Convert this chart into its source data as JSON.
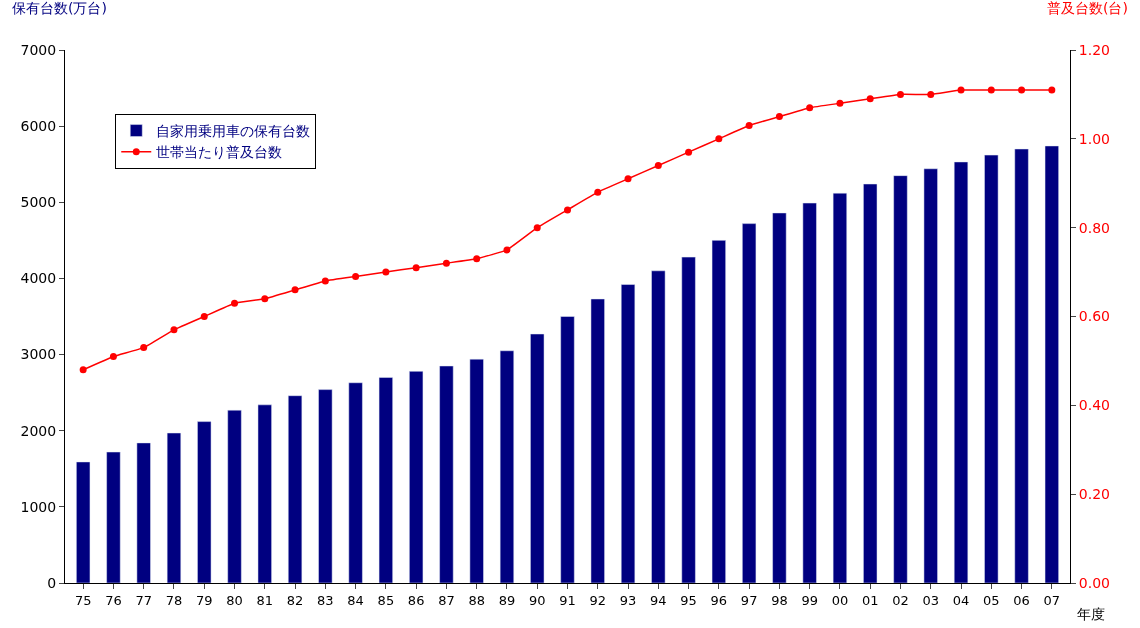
{
  "chart_data": {
    "type": "bar",
    "categories": [
      "75",
      "76",
      "77",
      "78",
      "79",
      "80",
      "81",
      "82",
      "83",
      "84",
      "85",
      "86",
      "87",
      "88",
      "89",
      "90",
      "91",
      "92",
      "93",
      "94",
      "95",
      "96",
      "97",
      "98",
      "99",
      "00",
      "01",
      "02",
      "03",
      "04",
      "05",
      "06",
      "07"
    ],
    "series": [
      {
        "name": "自家用乗用車の保有台数",
        "color": "#000080",
        "values": [
          1590,
          1720,
          1840,
          1970,
          2120,
          2270,
          2340,
          2460,
          2540,
          2630,
          2700,
          2780,
          2850,
          2940,
          3050,
          3270,
          3500,
          3730,
          3920,
          4100,
          4280,
          4500,
          4720,
          4860,
          4990,
          5120,
          5240,
          5350,
          5440,
          5530,
          5620,
          5700,
          5740
        ]
      },
      {
        "name": "世帯当たり普及台数",
        "type": "line",
        "axis": "y2",
        "color": "#ff0000",
        "marker": "circle",
        "values": [
          0.48,
          0.51,
          0.53,
          0.57,
          0.6,
          0.63,
          0.64,
          0.66,
          0.68,
          0.69,
          0.7,
          0.71,
          0.72,
          0.73,
          0.75,
          0.8,
          0.84,
          0.88,
          0.91,
          0.94,
          0.97,
          1.0,
          1.03,
          1.05,
          1.07,
          1.08,
          1.09,
          1.1,
          1.1,
          1.11,
          1.11,
          1.11,
          1.11
        ]
      }
    ],
    "ylabel": "保有台数(万台)",
    "y2label": "普及台数(台)",
    "xlabel": "年度",
    "ylim": [
      0,
      7000
    ],
    "yticks": [
      0,
      1000,
      2000,
      3000,
      4000,
      5000,
      6000,
      7000
    ],
    "y2lim": [
      0,
      1.2
    ],
    "y2ticks": [
      {
        "value": 0,
        "label": "0.00"
      },
      {
        "value": 0.2,
        "label": "0.20"
      },
      {
        "value": 0.4,
        "label": "0.40"
      },
      {
        "value": 0.6,
        "label": "0.60"
      },
      {
        "value": 0.8,
        "label": "0.80"
      },
      {
        "value": 1.0,
        "label": "1.00"
      },
      {
        "value": 1.2,
        "label": "1.20"
      }
    ],
    "legend": "top left"
  }
}
